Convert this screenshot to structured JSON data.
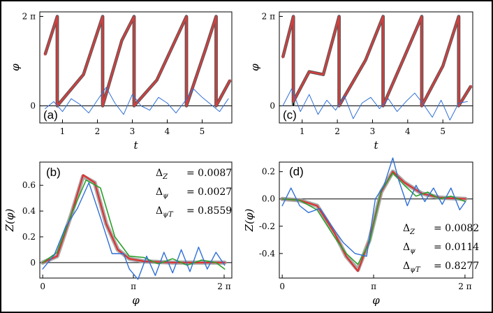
{
  "chart_data": [
    {
      "panel": "(a)",
      "type": "line",
      "xlabel": "t",
      "ylabel": "φ",
      "xlim": [
        0.35,
        5.85
      ],
      "ylim": [
        -1.2,
        6.6
      ],
      "xticks": [
        1,
        2,
        3,
        4,
        5
      ],
      "yticks": [
        {
          "v": 0,
          "label": "0"
        },
        {
          "v": 6.2832,
          "label": "2 π"
        }
      ],
      "resets": [
        0.85,
        2.15,
        3.05,
        4.55,
        5.4
      ],
      "series": [
        {
          "role": "phase",
          "color": "#d04040",
          "x": [
            0.5,
            0.85,
            0.85,
            1.6,
            2.15,
            2.15,
            2.7,
            3.05,
            3.05,
            3.7,
            4.55,
            4.55,
            5.1,
            5.4,
            5.4,
            5.8
          ],
          "y": [
            3.6,
            6.28,
            0.0,
            2.2,
            6.28,
            0.0,
            4.6,
            6.28,
            0.0,
            1.8,
            6.28,
            0.0,
            4.0,
            6.28,
            0.0,
            1.8
          ]
        },
        {
          "role": "noise",
          "color": "#2f6fd6",
          "x": [
            0.5,
            0.75,
            1.0,
            1.25,
            1.5,
            1.75,
            2.0,
            2.25,
            2.5,
            2.75,
            3.0,
            3.25,
            3.5,
            3.75,
            4.0,
            4.25,
            4.5,
            4.75,
            5.0,
            5.25,
            5.5,
            5.75
          ],
          "y": [
            -0.2,
            0.3,
            -0.4,
            0.5,
            0.1,
            -0.5,
            0.4,
            1.3,
            0.2,
            -0.6,
            0.8,
            0.0,
            -0.3,
            0.6,
            0.2,
            -0.5,
            0.3,
            1.2,
            0.6,
            0.1,
            -0.4,
            0.5
          ]
        }
      ]
    },
    {
      "panel": "(c)",
      "type": "line",
      "xlabel": "t",
      "ylabel": "φ",
      "xlim": [
        0.35,
        5.85
      ],
      "ylim": [
        -1.2,
        6.6
      ],
      "xticks": [
        1,
        2,
        3,
        4,
        5
      ],
      "yticks": [
        {
          "v": 0,
          "label": "0"
        },
        {
          "v": 6.2832,
          "label": "2 π"
        }
      ],
      "resets": [
        0.75,
        2.05,
        3.3,
        4.4,
        5.45
      ],
      "series": [
        {
          "role": "phase",
          "color": "#d04040",
          "x": [
            0.45,
            0.75,
            0.75,
            1.2,
            1.6,
            2.05,
            2.05,
            2.8,
            3.3,
            3.3,
            3.9,
            4.4,
            4.4,
            5.0,
            5.45,
            5.45,
            5.8
          ],
          "y": [
            3.4,
            6.28,
            0.3,
            2.4,
            2.2,
            6.28,
            0.0,
            3.2,
            6.28,
            0.0,
            3.4,
            6.28,
            0.0,
            2.8,
            6.28,
            0.0,
            1.4
          ]
        },
        {
          "role": "noise",
          "color": "#2f6fd6",
          "x": [
            0.45,
            0.7,
            0.95,
            1.2,
            1.45,
            1.7,
            1.95,
            2.2,
            2.45,
            2.7,
            2.95,
            3.2,
            3.45,
            3.7,
            3.95,
            4.2,
            4.45,
            4.7,
            4.95,
            5.2,
            5.45,
            5.7
          ],
          "y": [
            0.0,
            1.2,
            -0.4,
            0.8,
            -0.6,
            0.4,
            -0.3,
            0.7,
            -0.9,
            0.2,
            0.6,
            -0.2,
            0.5,
            -0.4,
            0.3,
            0.9,
            0.1,
            -0.8,
            0.4,
            -1.0,
            0.2,
            0.3
          ]
        }
      ]
    },
    {
      "panel": "(b)",
      "type": "line",
      "xlabel": "φ",
      "ylabel": "Z(φ)",
      "xlim": [
        -0.1,
        6.55
      ],
      "ylim": [
        -0.12,
        0.78
      ],
      "xticks": [
        {
          "v": 0,
          "label": "0"
        },
        {
          "v": 3.1416,
          "label": "π"
        },
        {
          "v": 6.2832,
          "label": "2 π"
        }
      ],
      "yticks": [
        {
          "v": 0,
          "label": "0"
        },
        {
          "v": 0.2,
          "label": "0.2"
        },
        {
          "v": 0.4,
          "label": "0.4"
        },
        {
          "v": 0.6,
          "label": "0.6"
        }
      ],
      "stats": [
        {
          "label": "Δ_Z",
          "value": "= 0.0087"
        },
        {
          "label": "Δ_ψ",
          "value": "= 0.0027"
        },
        {
          "label": "Δ_ψT",
          "value": "= 0.8559"
        }
      ],
      "series": [
        {
          "role": "reference",
          "color": "#9a9a9a",
          "x": [
            0.0,
            0.5,
            1.0,
            1.4,
            1.8,
            2.2,
            2.6,
            3.0,
            3.5,
            4.5,
            5.5,
            6.3
          ],
          "y": [
            0.0,
            0.05,
            0.38,
            0.67,
            0.62,
            0.3,
            0.1,
            0.03,
            0.01,
            0.0,
            0.0,
            0.0
          ]
        },
        {
          "role": "estimate",
          "color": "#e03030",
          "x": [
            0.0,
            0.5,
            1.0,
            1.4,
            1.8,
            2.2,
            2.6,
            3.0,
            3.5,
            4.5,
            5.5,
            6.3
          ],
          "y": [
            0.0,
            0.05,
            0.38,
            0.68,
            0.62,
            0.3,
            0.1,
            0.03,
            0.01,
            0.0,
            0.0,
            0.0
          ]
        },
        {
          "role": "fit",
          "color": "#2aa02a",
          "x": [
            0.0,
            0.5,
            1.0,
            1.5,
            2.0,
            2.5,
            3.0,
            3.5,
            4.0,
            4.5,
            5.0,
            5.5,
            6.0,
            6.3
          ],
          "y": [
            0.0,
            0.08,
            0.38,
            0.64,
            0.58,
            0.2,
            0.05,
            0.04,
            -0.01,
            0.03,
            -0.02,
            0.02,
            0.0,
            -0.05
          ]
        },
        {
          "role": "raw",
          "color": "#2f6fd6",
          "x": [
            0.0,
            0.4,
            0.8,
            1.2,
            1.6,
            2.0,
            2.4,
            2.8,
            3.0,
            3.3,
            3.6,
            3.9,
            4.2,
            4.5,
            4.8,
            5.1,
            5.4,
            5.7,
            6.0,
            6.3
          ],
          "y": [
            -0.05,
            0.06,
            0.28,
            0.42,
            0.62,
            0.35,
            0.07,
            0.07,
            -0.05,
            -0.13,
            0.05,
            -0.1,
            0.08,
            -0.08,
            0.1,
            -0.07,
            0.12,
            -0.05,
            0.08,
            -0.02
          ]
        }
      ]
    },
    {
      "panel": "(d)",
      "type": "line",
      "xlabel": "φ",
      "ylabel": "Z(φ)",
      "xlim": [
        -0.1,
        6.55
      ],
      "ylim": [
        -0.58,
        0.27
      ],
      "xticks": [
        {
          "v": 0,
          "label": "0"
        },
        {
          "v": 3.1416,
          "label": "π"
        },
        {
          "v": 6.2832,
          "label": "2 π"
        }
      ],
      "yticks": [
        {
          "v": -0.4,
          "label": "-0.4"
        },
        {
          "v": -0.2,
          "label": "-0.2"
        },
        {
          "v": 0,
          "label": "0.0"
        },
        {
          "v": 0.2,
          "label": "0.2"
        }
      ],
      "stats": [
        {
          "label": "Δ_Z",
          "value": "= 0.0082"
        },
        {
          "label": "Δ_ψ",
          "value": "= 0.0114"
        },
        {
          "label": "Δ_ψT",
          "value": "= 0.8277"
        }
      ],
      "series": [
        {
          "role": "reference",
          "color": "#9a9a9a",
          "x": [
            0.0,
            0.6,
            1.2,
            1.8,
            2.2,
            2.6,
            3.0,
            3.4,
            3.8,
            4.2,
            4.8,
            5.4,
            6.3
          ],
          "y": [
            0.0,
            -0.01,
            -0.05,
            -0.25,
            -0.42,
            -0.52,
            -0.3,
            0.05,
            0.2,
            0.12,
            0.04,
            0.01,
            0.0
          ]
        },
        {
          "role": "estimate",
          "color": "#e03030",
          "x": [
            0.0,
            0.6,
            1.2,
            1.8,
            2.2,
            2.6,
            3.0,
            3.4,
            3.8,
            4.2,
            4.8,
            5.4,
            6.3
          ],
          "y": [
            0.0,
            -0.01,
            -0.05,
            -0.25,
            -0.42,
            -0.53,
            -0.3,
            0.05,
            0.2,
            0.12,
            0.04,
            0.01,
            0.0
          ]
        },
        {
          "role": "fit",
          "color": "#2aa02a",
          "x": [
            0.0,
            0.6,
            1.2,
            1.8,
            2.2,
            2.6,
            3.0,
            3.4,
            3.8,
            4.2,
            4.6,
            5.0,
            5.4,
            5.8,
            6.3
          ],
          "y": [
            0.0,
            -0.01,
            -0.08,
            -0.28,
            -0.4,
            -0.48,
            -0.32,
            0.06,
            0.19,
            0.1,
            0.02,
            0.05,
            0.0,
            0.02,
            -0.02
          ]
        },
        {
          "role": "raw",
          "color": "#2f6fd6",
          "x": [
            0.0,
            0.3,
            0.6,
            0.9,
            1.3,
            1.7,
            2.1,
            2.5,
            2.9,
            3.2,
            3.5,
            3.8,
            4.0,
            4.3,
            4.6,
            4.9,
            5.2,
            5.5,
            5.8,
            6.1,
            6.3
          ],
          "y": [
            -0.05,
            0.08,
            -0.05,
            -0.1,
            -0.07,
            -0.2,
            -0.32,
            -0.4,
            -0.42,
            0.0,
            0.1,
            0.3,
            0.14,
            -0.05,
            0.1,
            -0.02,
            0.08,
            -0.04,
            0.08,
            -0.08,
            -0.02
          ]
        }
      ]
    }
  ]
}
